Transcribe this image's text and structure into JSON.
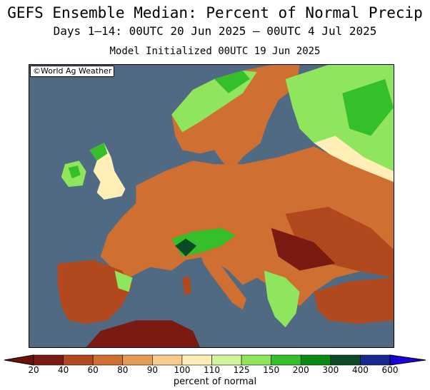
{
  "header": {
    "title": "GEFS Ensemble Median: Percent of Normal Precip",
    "subtitle": "Days 1–14: 00UTC 20 Jun 2025 – 00UTC 4 Jul 2025",
    "init": "Model Initialized 00UTC 19 Jun 2025"
  },
  "map": {
    "credit": "©World Ag Weather",
    "ocean_color": "#4f6a82"
  },
  "colorbar": {
    "label": "percent of normal",
    "ticks": [
      "20",
      "40",
      "60",
      "80",
      "90",
      "100",
      "110",
      "125",
      "150",
      "200",
      "300",
      "400",
      "600"
    ],
    "colors": [
      "#7a1a10",
      "#b2481e",
      "#cf6f31",
      "#e59b55",
      "#f6cb8c",
      "#ffeeb5",
      "#d4f49c",
      "#8fe55c",
      "#35bf2a",
      "#0a8a12",
      "#0a4a26",
      "#142a8c"
    ],
    "low_color": "#6a1408",
    "high_color": "#1a00d8"
  }
}
